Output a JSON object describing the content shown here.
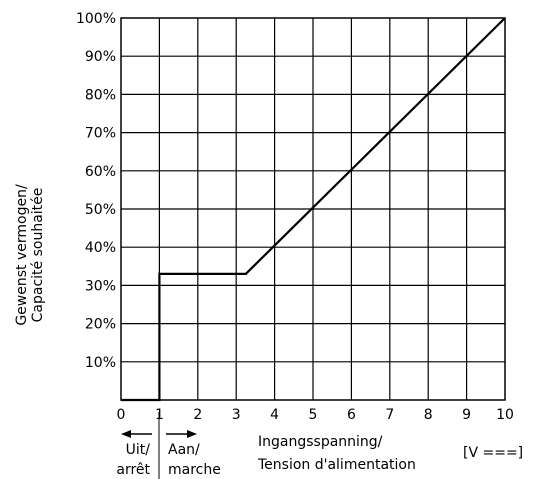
{
  "chart_data": {
    "type": "line",
    "title": "",
    "xlabel": [
      "Ingangsspanning/",
      "Tension d'alimentation"
    ],
    "xunit": "[V ===]",
    "ylabel": [
      "Gewenst vermogen/",
      "Capacité souhaitée"
    ],
    "xlim": [
      0,
      10
    ],
    "ylim": [
      0,
      100
    ],
    "grid": true,
    "x_ticks": [
      "0",
      "1",
      "2",
      "3",
      "4",
      "5",
      "6",
      "7",
      "8",
      "9",
      "10"
    ],
    "y_ticks": [
      "10%",
      "20%",
      "30%",
      "40%",
      "50%",
      "60%",
      "70%",
      "80%",
      "90%",
      "100%"
    ],
    "annotations": {
      "off": [
        "Uit/",
        "arrêt"
      ],
      "on": [
        "Aan/",
        "marche"
      ]
    },
    "series": [
      {
        "x": [
          0,
          1,
          1,
          3.25,
          10
        ],
        "y": [
          0,
          0,
          33,
          33,
          100
        ]
      }
    ]
  }
}
